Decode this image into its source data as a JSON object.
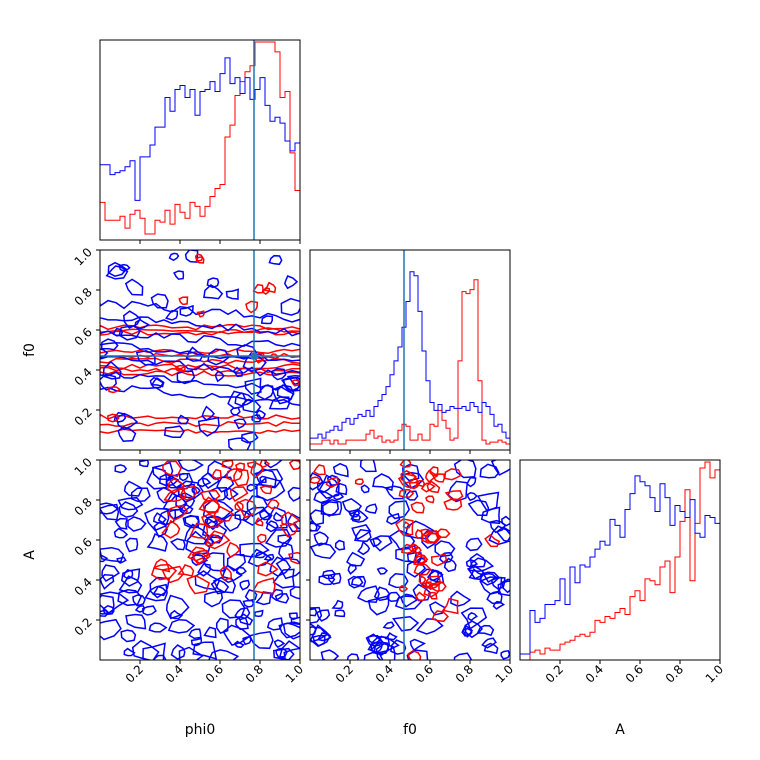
{
  "chart_data": {
    "type": "corner",
    "parameters": [
      "phi0",
      "f0",
      "A"
    ],
    "ranges": {
      "phi0": [
        0,
        1
      ],
      "f0": [
        0,
        1
      ],
      "A": [
        0,
        1
      ]
    },
    "ticks": [
      "0.2",
      "0.4",
      "0.6",
      "0.8",
      "1.0"
    ],
    "truth": {
      "phi0": 0.77,
      "f0": 0.47
    },
    "colors": {
      "series_1": "#ff0000",
      "series_2": "#0000ff",
      "truth": "#1f77b4"
    },
    "histograms": {
      "phi0": {
        "bin_width": 0.025,
        "series_1": [
          0.19,
          0.1,
          0.1,
          0.1,
          0.12,
          0.06,
          0.13,
          0.15,
          0.11,
          0.03,
          0.03,
          0.1,
          0.09,
          0.15,
          0.08,
          0.18,
          0.14,
          0.11,
          0.19,
          0.17,
          0.12,
          0.17,
          0.22,
          0.26,
          0.28,
          0.52,
          0.58,
          0.73,
          0.8,
          0.85,
          0.88,
          1.0,
          1.0,
          1.0,
          1.0,
          0.95,
          0.72,
          0.75,
          0.44,
          0.25
        ],
        "series_2": [
          0.38,
          0.38,
          0.33,
          0.34,
          0.35,
          0.37,
          0.4,
          0.2,
          0.42,
          0.42,
          0.48,
          0.57,
          0.57,
          0.72,
          0.65,
          0.76,
          0.78,
          0.72,
          0.76,
          0.63,
          0.75,
          0.76,
          0.8,
          0.75,
          0.84,
          0.92,
          0.79,
          0.82,
          0.74,
          0.82,
          0.71,
          0.76,
          0.82,
          0.68,
          0.6,
          0.62,
          0.59,
          0.5,
          0.45,
          0.49
        ]
      },
      "f0": {
        "bin_width": 0.02,
        "series_1": [
          0.03,
          0.03,
          0.03,
          0.05,
          0.05,
          0.03,
          0.05,
          0.03,
          0.03,
          0.05,
          0.05,
          0.05,
          0.05,
          0.05,
          0.08,
          0.1,
          0.06,
          0.07,
          0.04,
          0.05,
          0.04,
          0.05,
          0.1,
          0.13,
          0.12,
          0.05,
          0.05,
          0.08,
          0.05,
          0.05,
          0.13,
          0.12,
          0.2,
          0.15,
          0.11,
          0.05,
          0.06,
          0.45,
          0.8,
          0.79,
          0.81,
          0.86,
          0.35,
          0.05,
          0.03,
          0.04,
          0.04,
          0.05,
          0.04,
          0.03
        ],
        "series_2": [
          0.06,
          0.06,
          0.08,
          0.06,
          0.09,
          0.1,
          0.12,
          0.1,
          0.14,
          0.16,
          0.13,
          0.16,
          0.18,
          0.17,
          0.2,
          0.17,
          0.22,
          0.25,
          0.28,
          0.32,
          0.38,
          0.45,
          0.52,
          0.62,
          0.75,
          0.9,
          0.88,
          0.7,
          0.5,
          0.35,
          0.24,
          0.2,
          0.23,
          0.19,
          0.2,
          0.22,
          0.21,
          0.21,
          0.22,
          0.2,
          0.24,
          0.22,
          0.19,
          0.24,
          0.22,
          0.18,
          0.12,
          0.13,
          0.09,
          0.06
        ]
      },
      "A": {
        "bin_width": 0.025,
        "series_1": [
          0.0,
          0.0,
          0.04,
          0.05,
          0.03,
          0.06,
          0.05,
          0.05,
          0.08,
          0.09,
          0.1,
          0.12,
          0.13,
          0.12,
          0.14,
          0.2,
          0.19,
          0.22,
          0.21,
          0.24,
          0.26,
          0.23,
          0.32,
          0.35,
          0.3,
          0.41,
          0.4,
          0.38,
          0.47,
          0.5,
          0.34,
          0.52,
          0.7,
          0.86,
          0.4,
          0.69,
          0.97,
          1.0,
          0.92,
          0.96
        ],
        "series_2": [
          0.03,
          0.03,
          0.25,
          0.19,
          0.21,
          0.28,
          0.28,
          0.3,
          0.41,
          0.28,
          0.47,
          0.39,
          0.48,
          0.47,
          0.52,
          0.56,
          0.6,
          0.58,
          0.71,
          0.68,
          0.62,
          0.76,
          0.84,
          0.93,
          0.9,
          0.88,
          0.82,
          0.75,
          0.89,
          0.82,
          0.68,
          0.78,
          0.75,
          0.72,
          0.81,
          0.64,
          0.62,
          0.73,
          0.72,
          0.69
        ]
      }
    },
    "joint": {
      "phi0_vs_f0": {
        "x": "phi0",
        "y": "f0",
        "series_1_bands": [
          [
            0.13,
            0.1
          ],
          [
            0.4,
            0.05
          ],
          [
            0.47,
            0.07
          ],
          [
            0.6,
            0.04
          ]
        ],
        "series_2_center": 0.45,
        "truth_point": [
          0.77,
          0.47
        ]
      },
      "phi0_vs_A": {
        "x": "phi0",
        "y": "A"
      },
      "f0_vs_A": {
        "x": "f0",
        "y": "A"
      }
    }
  }
}
